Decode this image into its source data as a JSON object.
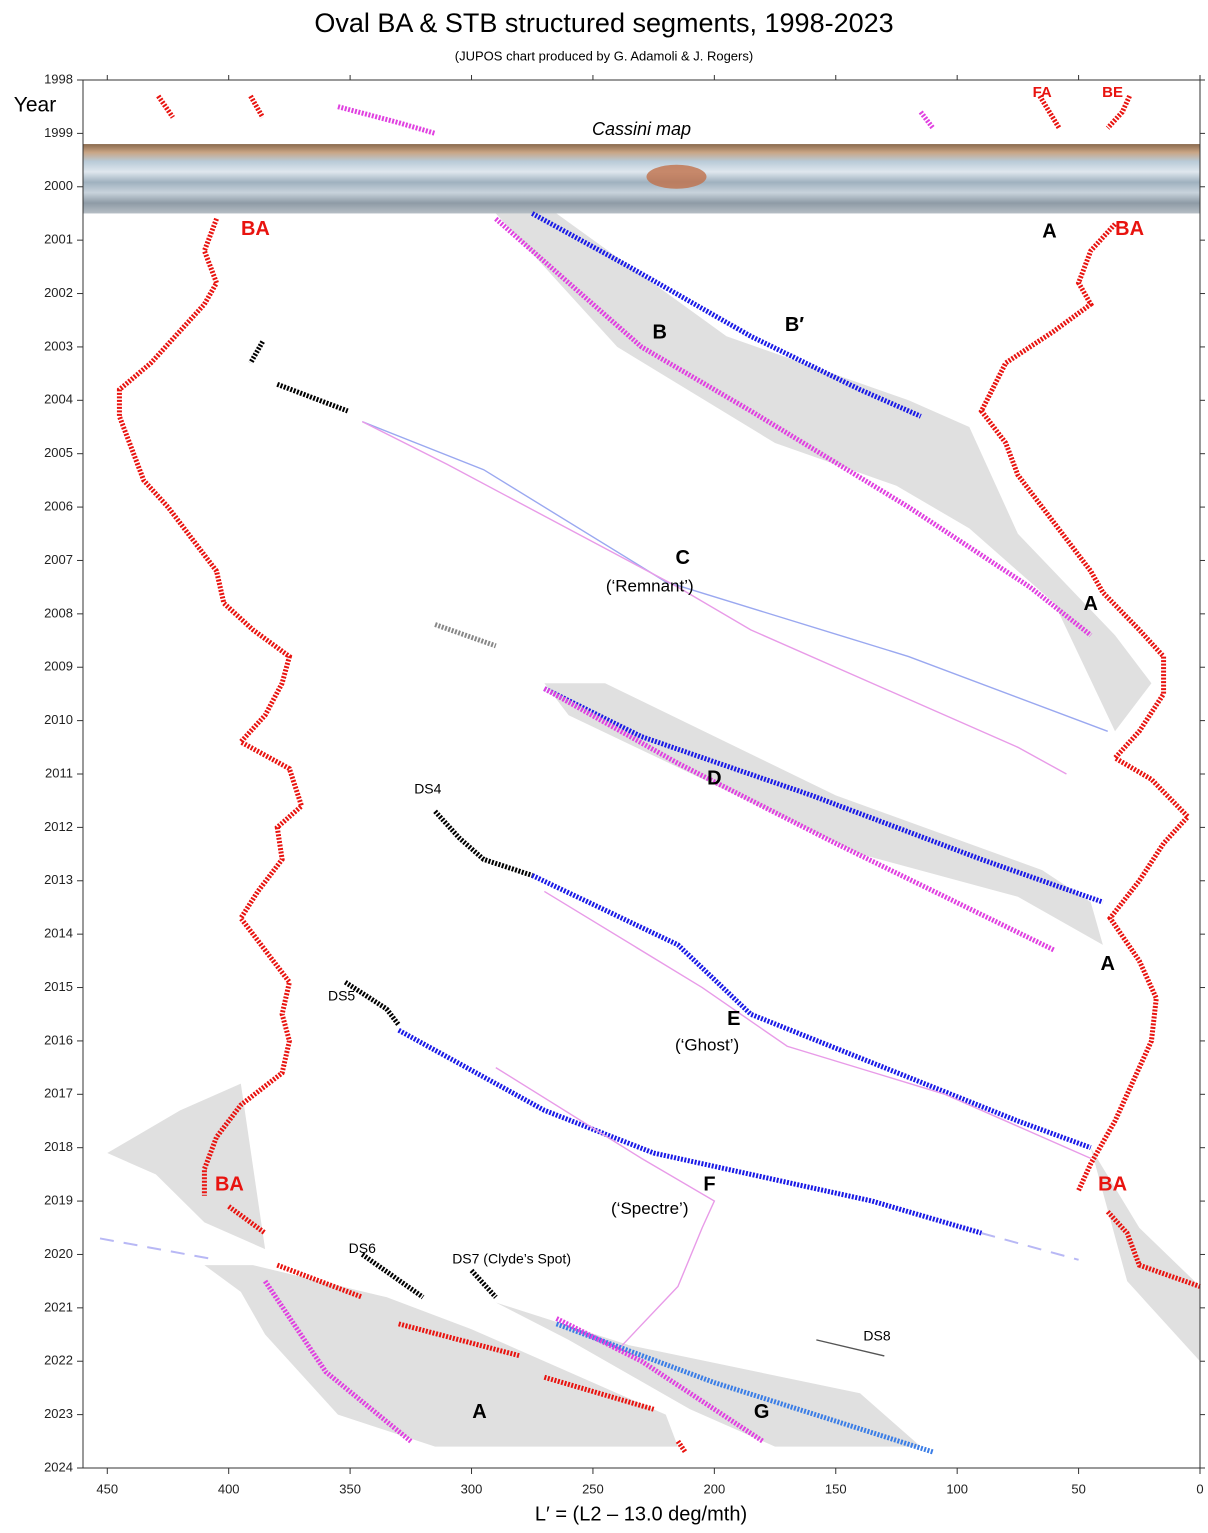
{
  "chart_data": {
    "type": "scatter",
    "title": "Oval BA & STB structured segments, 1998-2023",
    "subtitle": "(JUPOS chart produced by G. Adamoli & J. Rogers)",
    "x_label": "L′ = (L2 – 13.0 deg/mth)",
    "y_label": "Year",
    "xlim": [
      460,
      0
    ],
    "ylim": [
      1998,
      2024
    ],
    "xticks": [
      450,
      400,
      350,
      300,
      250,
      200,
      150,
      100,
      50,
      0
    ],
    "yticks": [
      1998,
      1999,
      2000,
      2001,
      2002,
      2003,
      2004,
      2005,
      2006,
      2007,
      2008,
      2009,
      2010,
      2011,
      2012,
      2013,
      2014,
      2015,
      2016,
      2017,
      2018,
      2019,
      2020,
      2021,
      2022,
      2023,
      2024
    ],
    "map_band": {
      "label": "Cassini map",
      "ylim": [
        1999.2,
        2000.5
      ]
    },
    "regions": [
      {
        "color": "#e0e0e0",
        "x": [
          285,
          265,
          195,
          120,
          95,
          75,
          35,
          20,
          35,
          60,
          95,
          125,
          175,
          240,
          290
        ],
        "y": [
          2000.5,
          2000.5,
          2002.8,
          2004.0,
          2004.5,
          2006.5,
          2008.4,
          2009.3,
          2010.2,
          2007.8,
          2006.4,
          2005.6,
          2004.8,
          2003.0,
          2000.5
        ]
      },
      {
        "color": "#e0e0e0",
        "x": [
          270,
          245,
          150,
          65,
          45,
          40,
          75,
          140,
          200,
          260
        ],
        "y": [
          2009.3,
          2009.3,
          2011.4,
          2012.8,
          2013.4,
          2014.2,
          2013.3,
          2012.5,
          2011.2,
          2009.9
        ]
      },
      {
        "color": "#e0e0e0",
        "x": [
          390,
          335,
          300,
          220,
          215,
          315,
          355,
          385,
          395,
          410
        ],
        "y": [
          2020.2,
          2020.8,
          2021.4,
          2023.0,
          2023.6,
          2023.6,
          2023.0,
          2021.5,
          2020.7,
          2020.2
        ]
      },
      {
        "color": "#e0e0e0",
        "x": [
          290,
          235,
          140,
          115,
          175,
          210,
          260
        ],
        "y": [
          2020.9,
          2021.7,
          2022.6,
          2023.6,
          2023.6,
          2022.9,
          2021.6
        ]
      },
      {
        "color": "#e0e0e0",
        "x": [
          45,
          25,
          0,
          0,
          30
        ],
        "y": [
          2018.0,
          2019.5,
          2020.6,
          2022.0,
          2020.5
        ]
      },
      {
        "color": "#e0e0e0",
        "x": [
          450,
          420,
          395,
          385,
          410,
          430
        ],
        "y": [
          2018.1,
          2017.3,
          2016.8,
          2019.9,
          2019.4,
          2018.5
        ]
      }
    ],
    "series": [
      {
        "color": "#e8130f",
        "style": "dotted",
        "x": [
          429,
          423
        ],
        "y": [
          1998.3,
          1998.7
        ]
      },
      {
        "color": "#e8130f",
        "style": "dotted",
        "x": [
          391,
          386
        ],
        "y": [
          1998.3,
          1998.7
        ]
      },
      {
        "color": "#e8130f",
        "style": "dotted",
        "x": [
          66,
          62,
          58
        ],
        "y": [
          1998.3,
          1998.6,
          1998.9
        ]
      },
      {
        "color": "#e8130f",
        "style": "dotted",
        "x": [
          29,
          32,
          38
        ],
        "y": [
          1998.3,
          1998.6,
          1998.9
        ]
      },
      {
        "color": "#e040e0",
        "style": "dotted",
        "x": [
          355,
          330,
          315
        ],
        "y": [
          1998.5,
          1998.8,
          1999.0
        ]
      },
      {
        "color": "#e040e0",
        "style": "dotted",
        "x": [
          115,
          110
        ],
        "y": [
          1998.6,
          1998.9
        ]
      },
      {
        "color": "#e8130f",
        "style": "dotted",
        "x": [
          405,
          410,
          405,
          410,
          420,
          432,
          445,
          445,
          440,
          435,
          425,
          415,
          405,
          402,
          390,
          375,
          378,
          385,
          395,
          375,
          370,
          380,
          378,
          388,
          395,
          385,
          375,
          378,
          375,
          378,
          395,
          405,
          410,
          410
        ],
        "y": [
          2000.6,
          2001.2,
          2001.8,
          2002.2,
          2002.7,
          2003.3,
          2003.8,
          2004.3,
          2004.9,
          2005.5,
          2006.0,
          2006.6,
          2007.2,
          2007.8,
          2008.3,
          2008.8,
          2009.3,
          2009.9,
          2010.4,
          2010.9,
          2011.6,
          2012.0,
          2012.6,
          2013.2,
          2013.7,
          2014.3,
          2014.9,
          2015.5,
          2016.0,
          2016.6,
          2017.2,
          2017.8,
          2018.4,
          2018.9
        ]
      },
      {
        "color": "#e8130f",
        "style": "dotted",
        "x": [
          400,
          385
        ],
        "y": [
          2019.1,
          2019.6
        ]
      },
      {
        "color": "#e8130f",
        "style": "dotted",
        "x": [
          380,
          345
        ],
        "y": [
          2020.2,
          2020.8
        ]
      },
      {
        "color": "#e8130f",
        "style": "dotted",
        "x": [
          330,
          280
        ],
        "y": [
          2021.3,
          2021.9
        ]
      },
      {
        "color": "#e8130f",
        "style": "dotted",
        "x": [
          270,
          225
        ],
        "y": [
          2022.3,
          2022.9
        ]
      },
      {
        "color": "#e8130f",
        "style": "dotted",
        "x": [
          215,
          212
        ],
        "y": [
          2023.5,
          2023.7
        ]
      },
      {
        "color": "#e8130f",
        "style": "dotted",
        "x": [
          35,
          45,
          50,
          45,
          60,
          80,
          90,
          80,
          75,
          60,
          45,
          40,
          25,
          15,
          15,
          25,
          35,
          20,
          5,
          15,
          25,
          37,
          25,
          18,
          20,
          28,
          35,
          45,
          50
        ],
        "y": [
          2000.7,
          2001.2,
          2001.8,
          2002.2,
          2002.7,
          2003.3,
          2004.2,
          2004.8,
          2005.4,
          2006.3,
          2007.2,
          2007.6,
          2008.3,
          2008.8,
          2009.5,
          2010.2,
          2010.7,
          2011.1,
          2011.8,
          2012.3,
          2013.0,
          2013.7,
          2014.5,
          2015.2,
          2016.0,
          2016.8,
          2017.5,
          2018.3,
          2018.8
        ]
      },
      {
        "color": "#e8130f",
        "style": "dotted",
        "x": [
          38,
          30,
          25,
          0
        ],
        "y": [
          2019.2,
          2019.6,
          2020.2,
          2020.6
        ]
      },
      {
        "color": "#000000",
        "style": "dotted",
        "x": [
          386,
          391
        ],
        "y": [
          2002.9,
          2003.3
        ]
      },
      {
        "color": "#000000",
        "style": "dotted",
        "x": [
          380,
          351
        ],
        "y": [
          2003.7,
          2004.2
        ]
      },
      {
        "color": "#888888",
        "style": "dotted",
        "x": [
          315,
          290
        ],
        "y": [
          2008.2,
          2008.6
        ]
      },
      {
        "color": "#000000",
        "style": "dotted",
        "x": [
          315,
          305,
          295,
          275
        ],
        "y": [
          2011.7,
          2012.2,
          2012.6,
          2012.9
        ]
      },
      {
        "color": "#000000",
        "style": "dotted",
        "x": [
          352,
          335,
          330
        ],
        "y": [
          2014.9,
          2015.4,
          2015.7
        ]
      },
      {
        "color": "#000000",
        "style": "dotted",
        "x": [
          345,
          320
        ],
        "y": [
          2020.0,
          2020.8
        ]
      },
      {
        "color": "#000000",
        "style": "dotted",
        "x": [
          300,
          290
        ],
        "y": [
          2020.3,
          2020.8
        ]
      },
      {
        "color": "#555555",
        "style": "line",
        "x": [
          158,
          130
        ],
        "y": [
          2021.6,
          2021.9
        ]
      },
      {
        "color": "#9aa8f0",
        "style": "line",
        "x": [
          345,
          295,
          220,
          120,
          38
        ],
        "y": [
          2004.4,
          2005.3,
          2007.4,
          2008.8,
          2010.2
        ]
      },
      {
        "color": "#e89be8",
        "style": "line",
        "x": [
          345,
          310,
          215,
          185,
          75,
          55
        ],
        "y": [
          2004.4,
          2005.2,
          2007.5,
          2008.3,
          2010.5,
          2011.0
        ]
      },
      {
        "color": "#1a1ae6",
        "style": "dotted",
        "x": [
          270,
          230,
          160,
          90,
          40
        ],
        "y": [
          2009.4,
          2010.3,
          2011.4,
          2012.6,
          2013.4
        ]
      },
      {
        "color": "#e040e0",
        "style": "dotted",
        "x": [
          270,
          215,
          150,
          60
        ],
        "y": [
          2009.4,
          2010.8,
          2012.3,
          2014.3
        ]
      },
      {
        "color": "#1a1ae6",
        "style": "dotted",
        "x": [
          275,
          215,
          185,
          130,
          75,
          45
        ],
        "y": [
          2012.9,
          2014.2,
          2015.5,
          2016.5,
          2017.5,
          2018.0
        ]
      },
      {
        "color": "#e89be8",
        "style": "line",
        "x": [
          270,
          205,
          170,
          105,
          45
        ],
        "y": [
          2013.2,
          2015.0,
          2016.1,
          2017.0,
          2018.2
        ]
      },
      {
        "color": "#1a1ae6",
        "style": "dotted",
        "x": [
          330,
          270,
          225,
          135,
          90
        ],
        "y": [
          2015.8,
          2017.3,
          2018.1,
          2019.0,
          2019.6
        ]
      },
      {
        "color": "#e89be8",
        "style": "line",
        "x": [
          290,
          230,
          200,
          205,
          215,
          240
        ],
        "y": [
          2016.5,
          2018.2,
          2019.0,
          2019.5,
          2020.6,
          2021.8
        ]
      },
      {
        "color": "#1a1ae6",
        "style": "dotted",
        "x": [
          275,
          235,
          185,
          140,
          115
        ],
        "y": [
          2000.5,
          2001.5,
          2002.8,
          2003.8,
          2004.3
        ]
      },
      {
        "color": "#e040e0",
        "style": "dotted",
        "x": [
          290,
          250,
          230,
          185,
          120,
          70,
          45
        ],
        "y": [
          2000.6,
          2002.2,
          2003.0,
          2004.2,
          2006.0,
          2007.5,
          2008.4
        ]
      },
      {
        "color": "#3a7de6",
        "style": "dotted",
        "x": [
          265,
          200,
          110
        ],
        "y": [
          2021.3,
          2022.4,
          2023.7
        ]
      },
      {
        "color": "#e040e0",
        "style": "dotted",
        "x": [
          265,
          230,
          180
        ],
        "y": [
          2021.2,
          2022.0,
          2023.5
        ]
      },
      {
        "color": "#e040e0",
        "style": "dotted",
        "x": [
          385,
          360,
          325
        ],
        "y": [
          2020.5,
          2022.2,
          2023.5
        ]
      },
      {
        "color": "#b8b8f5",
        "style": "dashed",
        "x": [
          453,
          405
        ],
        "y": [
          2019.7,
          2020.1
        ]
      },
      {
        "color": "#b8b8f5",
        "style": "dashed",
        "x": [
          90,
          50
        ],
        "y": [
          2019.6,
          2020.1
        ]
      }
    ],
    "annotations": [
      {
        "text": "FA",
        "x": 65,
        "y": 1998.24,
        "color": "#e8130f",
        "style": "small-bold"
      },
      {
        "text": "BE",
        "x": 36,
        "y": 1998.24,
        "color": "#e8130f",
        "style": "small-bold"
      },
      {
        "text": "BA",
        "x": 389,
        "y": 2000.8,
        "color": "#e8130f",
        "style": "bold"
      },
      {
        "text": "A",
        "x": 62,
        "y": 2000.85,
        "color": "#000000",
        "style": "bold"
      },
      {
        "text": "BA",
        "x": 29,
        "y": 2000.8,
        "color": "#e8130f",
        "style": "bold"
      },
      {
        "text": "B",
        "x": 222.5,
        "y": 2002.74,
        "color": "#000000",
        "style": "bold"
      },
      {
        "text": "B′",
        "x": 167,
        "y": 2002.6,
        "color": "#000000",
        "style": "bold"
      },
      {
        "text": "C",
        "x": 213,
        "y": 2006.97,
        "color": "#000000",
        "style": "bold"
      },
      {
        "text": "(‘Remnant’)",
        "x": 226.6,
        "y": 2007.5,
        "color": "#000000",
        "style": "normal"
      },
      {
        "text": "A",
        "x": 45,
        "y": 2007.83,
        "color": "#000000",
        "style": "bold"
      },
      {
        "text": "D",
        "x": 200,
        "y": 2011.1,
        "color": "#000000",
        "style": "bold"
      },
      {
        "text": "DS4",
        "x": 318,
        "y": 2011.3,
        "color": "#000000",
        "style": "label"
      },
      {
        "text": "A",
        "x": 38,
        "y": 2014.57,
        "color": "#000000",
        "style": "bold"
      },
      {
        "text": "DS5",
        "x": 353.5,
        "y": 2015.17,
        "color": "#000000",
        "style": "label"
      },
      {
        "text": "E",
        "x": 192,
        "y": 2015.6,
        "color": "#000000",
        "style": "bold"
      },
      {
        "text": "(‘Ghost’)",
        "x": 203,
        "y": 2016.1,
        "color": "#000000",
        "style": "normal"
      },
      {
        "text": "BA",
        "x": 399.7,
        "y": 2018.7,
        "color": "#e8130f",
        "style": "bold"
      },
      {
        "text": "F",
        "x": 202,
        "y": 2018.7,
        "color": "#000000",
        "style": "bold"
      },
      {
        "text": "BA",
        "x": 36,
        "y": 2018.7,
        "color": "#e8130f",
        "style": "bold"
      },
      {
        "text": "(‘Spectre’)",
        "x": 226.6,
        "y": 2019.16,
        "color": "#000000",
        "style": "normal"
      },
      {
        "text": "DS6",
        "x": 345,
        "y": 2019.9,
        "color": "#000000",
        "style": "label"
      },
      {
        "text": "DS7 (Clyde’s Spot)",
        "x": 283.5,
        "y": 2020.1,
        "color": "#000000",
        "style": "label"
      },
      {
        "text": "DS8",
        "x": 133,
        "y": 2021.54,
        "color": "#000000",
        "style": "label"
      },
      {
        "text": "A",
        "x": 296.7,
        "y": 2022.96,
        "color": "#000000",
        "style": "bold"
      },
      {
        "text": "G",
        "x": 180.5,
        "y": 2022.96,
        "color": "#000000",
        "style": "bold"
      }
    ]
  }
}
